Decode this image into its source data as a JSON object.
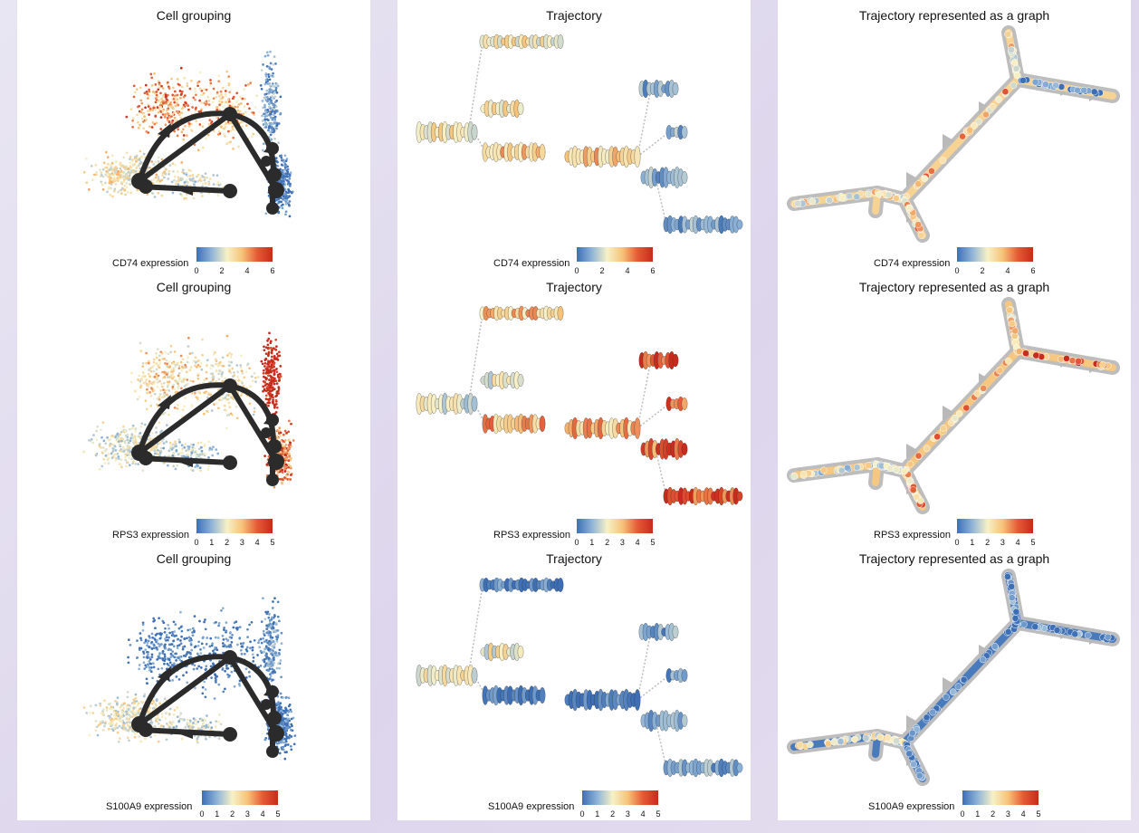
{
  "rows": [
    {
      "gene_label": "CD74 expression",
      "ticks": [
        "0",
        "2",
        "4",
        "6"
      ],
      "max": 6
    },
    {
      "gene_label": "RPS3 expression",
      "ticks": [
        "0",
        "1",
        "2",
        "3",
        "4",
        "5"
      ],
      "max": 5
    },
    {
      "gene_label": "S100A9 expression",
      "ticks": [
        "0",
        "1",
        "2",
        "3",
        "4",
        "5"
      ],
      "max": 5
    }
  ],
  "titles": {
    "left": "Cell grouping",
    "middle": "Trajectory",
    "right": "Trajectory represented as a graph"
  },
  "colors": {
    "low": "#3c6fb5",
    "mid": "#f7f1c7",
    "high": "#c82a1c",
    "edge": "#2b2b2b",
    "graph_bg": "#bdbdbd"
  },
  "chart_data": [
    {
      "type": "scatter",
      "title": "Cell grouping",
      "color_by": "CD74 expression",
      "range": [
        0,
        6
      ]
    },
    {
      "type": "violin",
      "title": "Trajectory",
      "color_by": "CD74 expression",
      "range": [
        0,
        6
      ]
    },
    {
      "type": "graph",
      "title": "Trajectory represented as a graph",
      "color_by": "CD74 expression",
      "range": [
        0,
        6
      ]
    },
    {
      "type": "scatter",
      "title": "Cell grouping",
      "color_by": "RPS3 expression",
      "range": [
        0,
        5
      ]
    },
    {
      "type": "violin",
      "title": "Trajectory",
      "color_by": "RPS3 expression",
      "range": [
        0,
        5
      ]
    },
    {
      "type": "graph",
      "title": "Trajectory represented as a graph",
      "color_by": "RPS3 expression",
      "range": [
        0,
        5
      ]
    },
    {
      "type": "scatter",
      "title": "Cell grouping",
      "color_by": "S100A9 expression",
      "range": [
        0,
        5
      ]
    },
    {
      "type": "violin",
      "title": "Trajectory",
      "color_by": "S100A9 expression",
      "range": [
        0,
        5
      ]
    },
    {
      "type": "graph",
      "title": "Trajectory represented as a graph",
      "color_by": "S100A9 expression",
      "range": [
        0,
        5
      ]
    }
  ]
}
